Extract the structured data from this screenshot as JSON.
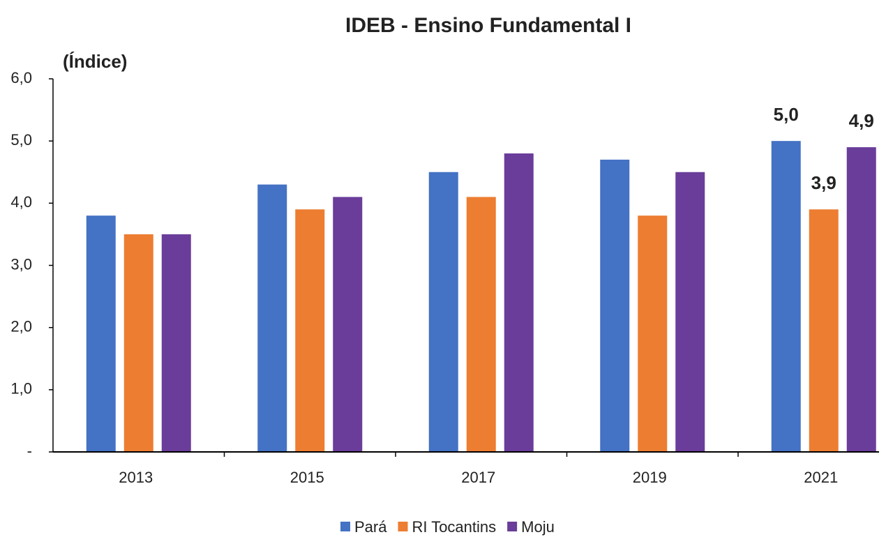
{
  "chart_data": {
    "type": "bar",
    "title": "IDEB - Ensino Fundamental I",
    "y_label": "(Índice)",
    "categories": [
      "2013",
      "2015",
      "2017",
      "2019",
      "2021"
    ],
    "series": [
      {
        "name": "Pará",
        "color": "#4472c4",
        "values": [
          3.8,
          4.3,
          4.5,
          4.7,
          5.0
        ],
        "value_labels": [
          null,
          null,
          null,
          null,
          "5,0"
        ]
      },
      {
        "name": "RI Tocantins",
        "color": "#ed7d31",
        "values": [
          3.5,
          3.9,
          4.1,
          3.8,
          3.9
        ],
        "value_labels": [
          null,
          null,
          null,
          null,
          "3,9"
        ]
      },
      {
        "name": "Moju",
        "color": "#6a3d9a",
        "values": [
          3.5,
          4.1,
          4.8,
          4.5,
          4.9
        ],
        "value_labels": [
          null,
          null,
          null,
          null,
          "4,9"
        ]
      }
    ],
    "ylim": [
      0,
      6
    ],
    "yticks": [
      {
        "value": 0,
        "label": "-"
      },
      {
        "value": 1,
        "label": "1,0"
      },
      {
        "value": 2,
        "label": "2,0"
      },
      {
        "value": 3,
        "label": "3,0"
      },
      {
        "value": 4,
        "label": "4,0"
      },
      {
        "value": 5,
        "label": "5,0"
      },
      {
        "value": 6,
        "label": "6,0"
      }
    ],
    "legend": "bottom"
  }
}
